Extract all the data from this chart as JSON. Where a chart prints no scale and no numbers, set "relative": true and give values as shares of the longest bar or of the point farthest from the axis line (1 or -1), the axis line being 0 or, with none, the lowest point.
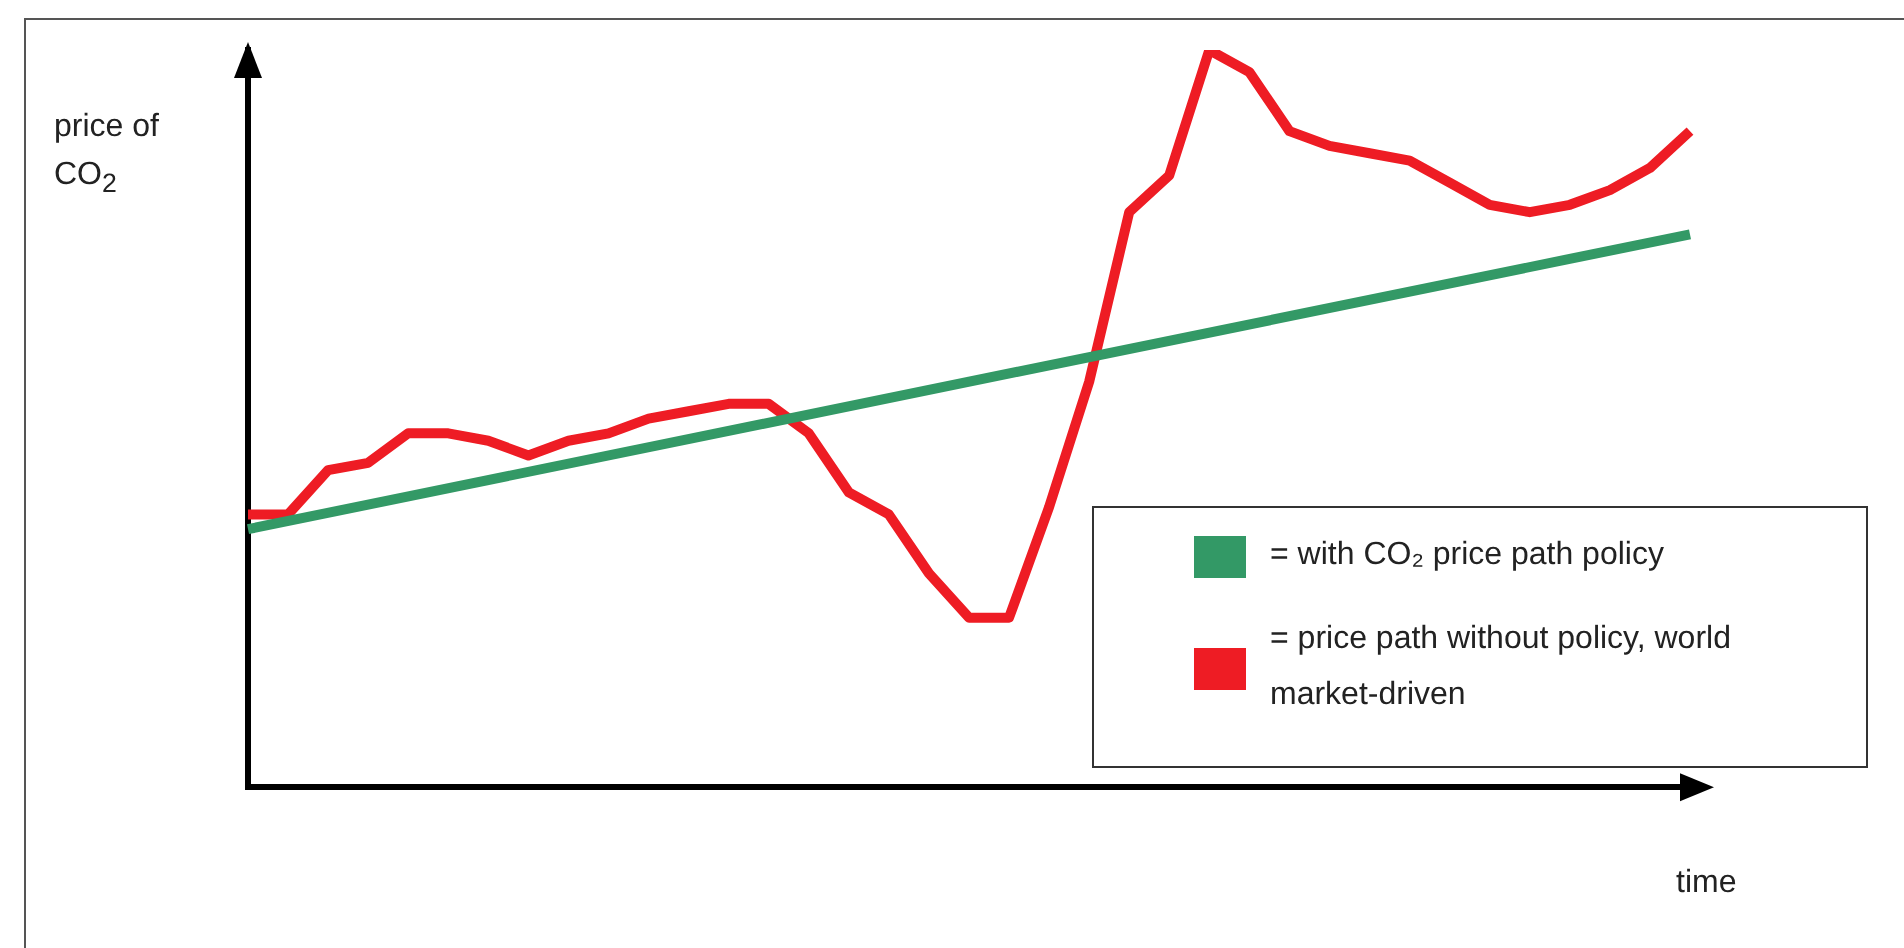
{
  "chart_data": {
    "type": "line",
    "relative": true,
    "ylabel": "price of CO$_{2}$",
    "xlabel": "time",
    "legend": "bottom right",
    "marker": "none",
    "grid": false,
    "categories": [
      null,
      null,
      null,
      null,
      null,
      null,
      null,
      null,
      null,
      null,
      null,
      null,
      null,
      null,
      null,
      null,
      null,
      null,
      null,
      null,
      null,
      null,
      null,
      null,
      null,
      null,
      null,
      null,
      null,
      null,
      null,
      null,
      null,
      null,
      null,
      null,
      null
    ],
    "series": [
      {
        "name": "= with CO₂ price path policy",
        "color": "#339966",
        "values": [
          0.35,
          null,
          null,
          null,
          null,
          null,
          null,
          null,
          null,
          null,
          null,
          null,
          null,
          null,
          null,
          null,
          null,
          null,
          null,
          null,
          null,
          null,
          null,
          null,
          null,
          null,
          null,
          null,
          null,
          null,
          null,
          null,
          null,
          null,
          null,
          null,
          0.75
        ]
      },
      {
        "name": "= price path without policy, world market-driven",
        "color": "#ee1c24",
        "values": [
          0.37,
          0.37,
          0.43,
          0.44,
          0.48,
          0.48,
          0.47,
          0.45,
          0.47,
          0.48,
          0.5,
          0.51,
          0.52,
          0.52,
          0.48,
          0.4,
          0.37,
          0.29,
          0.23,
          0.23,
          0.38,
          0.55,
          0.78,
          0.83,
          1.0,
          0.97,
          0.89,
          0.87,
          0.86,
          0.85,
          0.82,
          0.79,
          0.78,
          0.79,
          0.81,
          0.84,
          0.89
        ]
      }
    ]
  }
}
